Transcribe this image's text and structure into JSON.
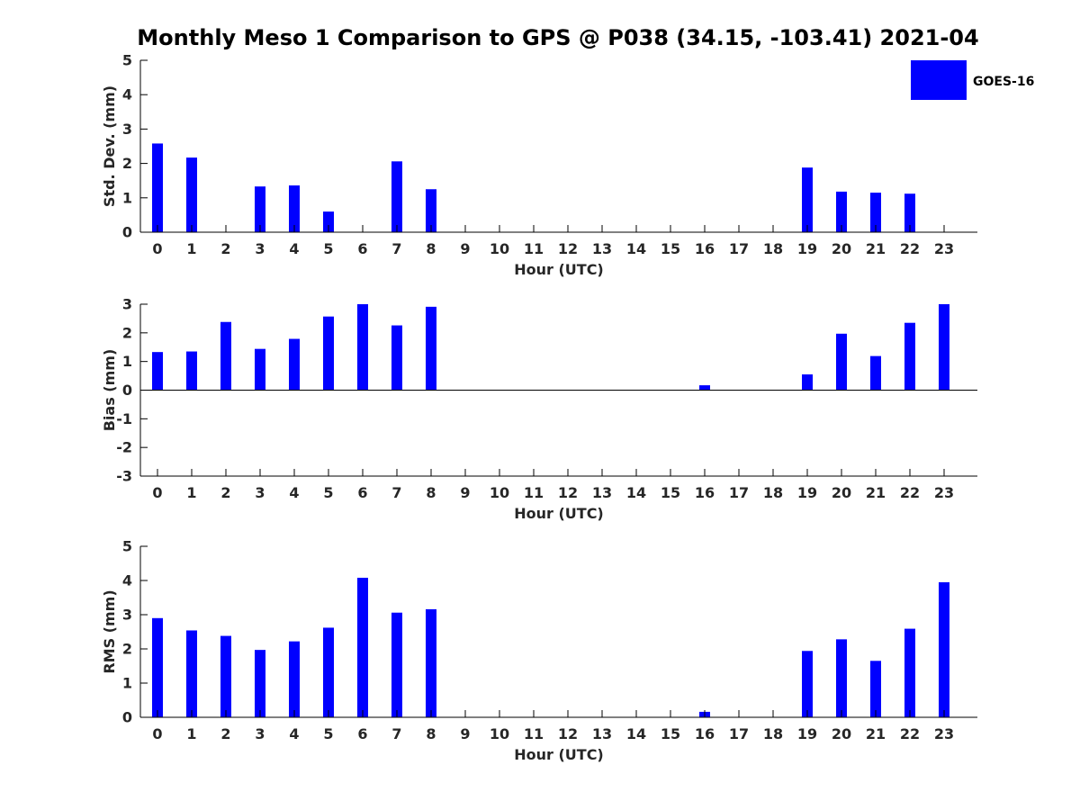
{
  "title": "Monthly Meso 1 Comparison to GPS @ P038 (34.15, -103.41) 2021-04",
  "legend": {
    "label": "GOES-16",
    "position": "top-right"
  },
  "colors": {
    "bar": "#0000ff",
    "axis": "#000000",
    "tick_label": "#262626"
  },
  "chart_data": [
    {
      "type": "bar",
      "title": "",
      "xlabel": "Hour (UTC)",
      "ylabel": "Std. Dev. (mm)",
      "categories": [
        "0",
        "1",
        "2",
        "3",
        "4",
        "5",
        "6",
        "7",
        "8",
        "9",
        "10",
        "11",
        "12",
        "13",
        "14",
        "15",
        "16",
        "17",
        "18",
        "19",
        "20",
        "21",
        "22",
        "23"
      ],
      "ylim": [
        0,
        5
      ],
      "yticks": [
        0,
        1,
        2,
        3,
        4,
        5
      ],
      "series": [
        {
          "name": "GOES-16",
          "values": [
            2.58,
            2.17,
            0,
            1.33,
            1.36,
            0.6,
            0,
            2.06,
            1.25,
            0,
            0,
            0,
            0,
            0,
            0,
            0,
            0,
            0,
            0,
            1.88,
            1.18,
            1.15,
            1.12,
            0
          ]
        }
      ],
      "grid": false
    },
    {
      "type": "bar",
      "title": "",
      "xlabel": "Hour (UTC)",
      "ylabel": "Bias (mm)",
      "categories": [
        "0",
        "1",
        "2",
        "3",
        "4",
        "5",
        "6",
        "7",
        "8",
        "9",
        "10",
        "11",
        "12",
        "13",
        "14",
        "15",
        "16",
        "17",
        "18",
        "19",
        "20",
        "21",
        "22",
        "23"
      ],
      "ylim": [
        -3,
        3
      ],
      "yticks": [
        -3,
        -2,
        -1,
        0,
        1,
        2,
        3
      ],
      "series": [
        {
          "name": "GOES-16",
          "values": [
            1.33,
            1.35,
            2.38,
            1.44,
            1.79,
            2.57,
            3.0,
            2.26,
            2.91,
            0,
            0,
            0,
            0,
            0,
            0,
            0,
            0.17,
            0,
            0,
            0.55,
            1.97,
            1.19,
            2.35,
            3.0
          ]
        }
      ],
      "grid": false
    },
    {
      "type": "bar",
      "title": "",
      "xlabel": "Hour (UTC)",
      "ylabel": "RMS (mm)",
      "categories": [
        "0",
        "1",
        "2",
        "3",
        "4",
        "5",
        "6",
        "7",
        "8",
        "9",
        "10",
        "11",
        "12",
        "13",
        "14",
        "15",
        "16",
        "17",
        "18",
        "19",
        "20",
        "21",
        "22",
        "23"
      ],
      "ylim": [
        0,
        5
      ],
      "yticks": [
        0,
        1,
        2,
        3,
        4,
        5
      ],
      "series": [
        {
          "name": "GOES-16",
          "values": [
            2.9,
            2.54,
            2.38,
            1.97,
            2.22,
            2.62,
            4.08,
            3.06,
            3.16,
            0,
            0,
            0,
            0,
            0,
            0,
            0,
            0.16,
            0,
            0,
            1.94,
            2.28,
            1.65,
            2.59,
            3.95
          ]
        }
      ],
      "grid": false
    }
  ]
}
